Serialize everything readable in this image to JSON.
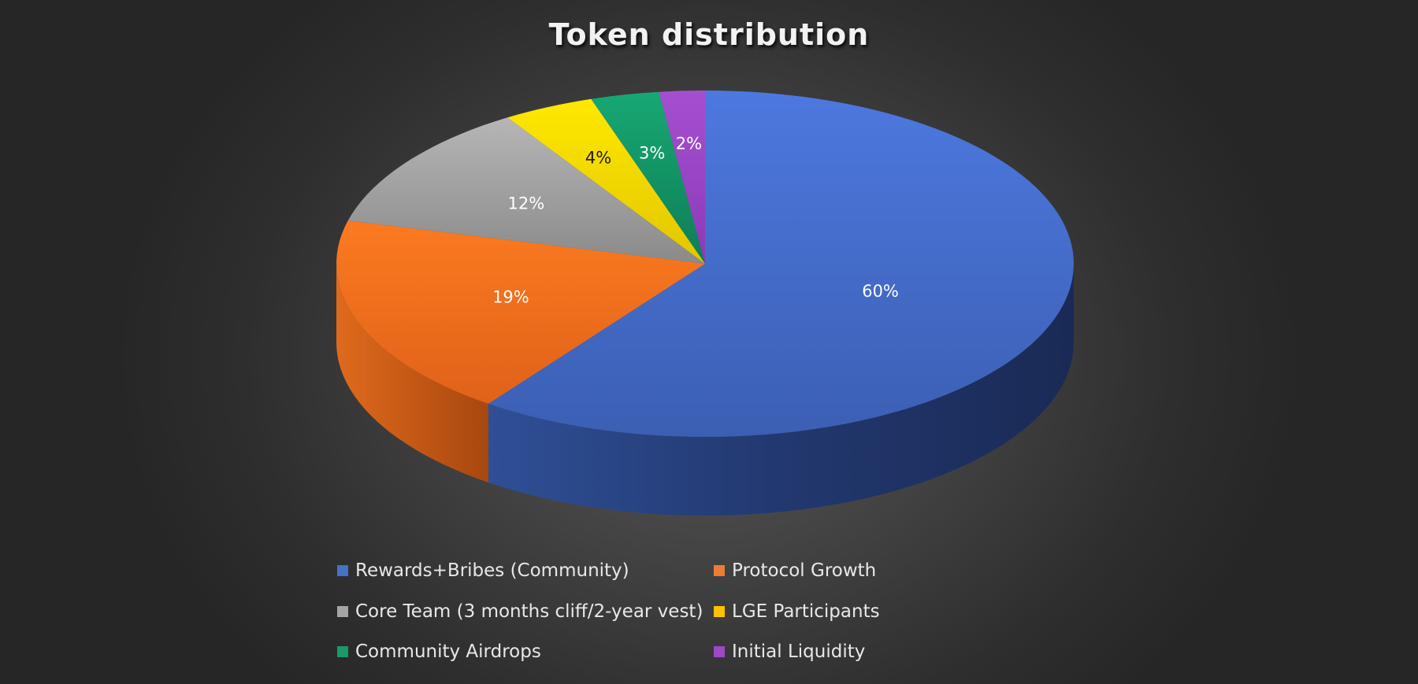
{
  "chart_data": {
    "type": "pie",
    "title": "Token distribution",
    "categories": [
      "Rewards+Bribes (Community)",
      "Protocol Growth",
      "Core Team (3 months cliff/2-year vest)",
      "LGE Participants",
      "Community Airdrops",
      "Initial Liquidity"
    ],
    "values": [
      60,
      19,
      12,
      4,
      3,
      2
    ],
    "data_labels": [
      "60%",
      "19%",
      "12%",
      "4%",
      "3%",
      "2%"
    ],
    "colors": [
      "#4472c4",
      "#ed7d31",
      "#a5a5a5",
      "#ffc000",
      "#1a9a68",
      "#9e48c6"
    ],
    "legend_position": "bottom",
    "style": "3d-pie"
  }
}
